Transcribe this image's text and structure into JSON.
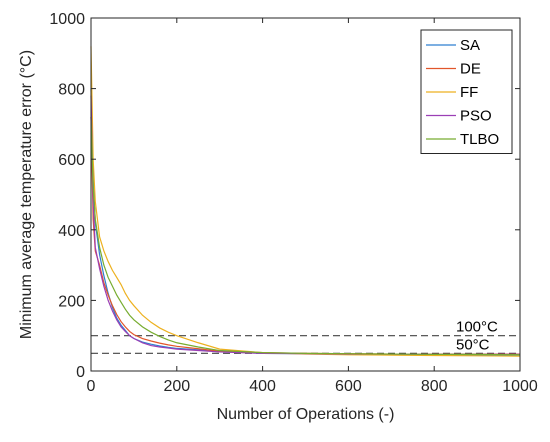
{
  "chart_data": {
    "type": "line",
    "title": "",
    "xlabel": "Number of Operations  (-)",
    "ylabel": "Minimum average temperature error   (°C)",
    "xlim": [
      0,
      1000
    ],
    "ylim": [
      0,
      1000
    ],
    "xticks": [
      "0",
      "200",
      "400",
      "600",
      "800",
      "1000"
    ],
    "yticks": [
      "0",
      "200",
      "400",
      "600",
      "800",
      "1000"
    ],
    "grid": false,
    "legend_position": "top-right",
    "reference_lines": [
      {
        "y": 100,
        "label": "100°C",
        "style": "dashed"
      },
      {
        "y": 50,
        "label": "50°C",
        "style": "dashed"
      }
    ],
    "series": [
      {
        "name": "SA",
        "color": "#2f7fd0",
        "x": [
          0,
          5,
          10,
          20,
          30,
          40,
          50,
          60,
          70,
          80,
          90,
          100,
          120,
          140,
          160,
          180,
          200,
          250,
          300,
          400,
          500,
          600,
          700,
          800,
          900,
          1000
        ],
        "y": [
          800,
          560,
          420,
          330,
          270,
          220,
          180,
          150,
          130,
          115,
          100,
          92,
          82,
          76,
          71,
          67,
          64,
          60,
          55,
          50,
          49,
          48,
          47,
          46,
          45,
          45
        ]
      },
      {
        "name": "DE",
        "color": "#e1562b",
        "x": [
          0,
          5,
          10,
          20,
          30,
          40,
          50,
          60,
          70,
          80,
          90,
          100,
          120,
          140,
          160,
          180,
          200,
          250,
          300,
          400,
          500,
          600,
          700,
          800,
          900,
          1000
        ],
        "y": [
          720,
          430,
          340,
          300,
          250,
          215,
          185,
          160,
          140,
          125,
          112,
          103,
          92,
          85,
          79,
          74,
          70,
          63,
          56,
          52,
          50,
          49,
          48,
          48,
          48,
          48
        ]
      },
      {
        "name": "FF",
        "color": "#edb120",
        "x": [
          0,
          5,
          10,
          20,
          30,
          40,
          50,
          60,
          70,
          80,
          90,
          100,
          120,
          140,
          160,
          180,
          200,
          250,
          300,
          400,
          500,
          600,
          700,
          800,
          900,
          1000
        ],
        "y": [
          920,
          600,
          480,
          380,
          340,
          310,
          285,
          265,
          245,
          220,
          200,
          185,
          158,
          138,
          122,
          110,
          100,
          80,
          62,
          52,
          48,
          46,
          45,
          44,
          43,
          42
        ]
      },
      {
        "name": "PSO",
        "color": "#9b3fb5",
        "x": [
          0,
          5,
          10,
          20,
          30,
          40,
          50,
          60,
          70,
          80,
          90,
          100,
          120,
          140,
          160,
          180,
          200,
          250,
          300,
          400,
          500,
          600,
          700,
          800,
          900,
          1000
        ],
        "y": [
          780,
          480,
          350,
          290,
          240,
          200,
          170,
          145,
          125,
          112,
          100,
          92,
          80,
          72,
          68,
          65,
          62,
          58,
          54,
          50,
          49,
          48,
          48,
          47,
          47,
          47
        ]
      },
      {
        "name": "TLBO",
        "color": "#77ac30",
        "x": [
          0,
          5,
          10,
          20,
          30,
          40,
          50,
          60,
          70,
          80,
          90,
          100,
          120,
          140,
          160,
          180,
          200,
          250,
          300,
          400,
          500,
          600,
          700,
          800,
          900,
          1000
        ],
        "y": [
          720,
          520,
          430,
          350,
          300,
          265,
          240,
          215,
          195,
          175,
          158,
          145,
          125,
          110,
          98,
          88,
          80,
          68,
          58,
          52,
          50,
          49,
          48,
          47,
          47,
          46
        ]
      }
    ]
  }
}
